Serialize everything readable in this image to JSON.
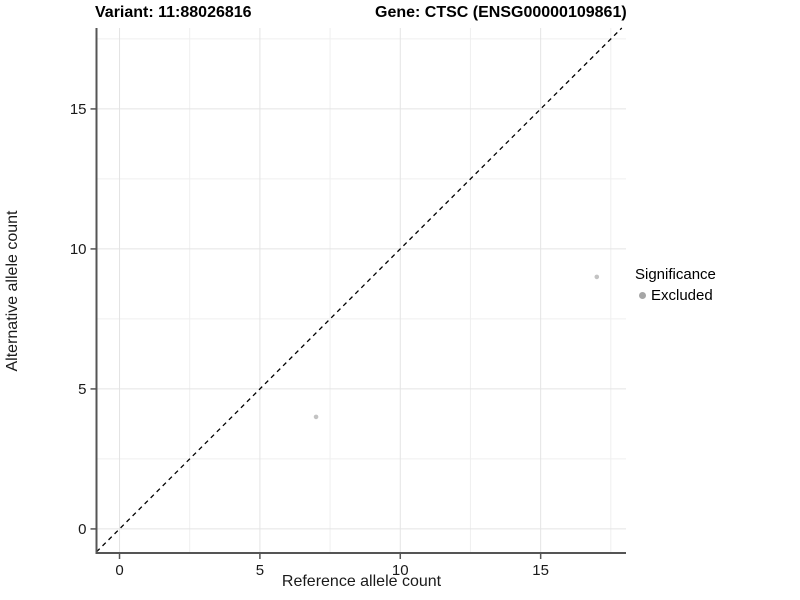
{
  "title": {
    "left": "Variant: 11:88026816",
    "right": "Gene: CTSC (ENSG00000109861)"
  },
  "axes": {
    "x_label": "Reference allele count",
    "y_label": "Alternative allele count"
  },
  "legend": {
    "title": "Significance",
    "items": [
      {
        "label": "Excluded",
        "color": "#a6a6a6"
      }
    ]
  },
  "colors": {
    "background": "#ffffff",
    "grid_major": "#e4e4e4",
    "grid_minor": "#efefef",
    "axis_line": "#555555",
    "tick_mark": "#555555",
    "tick_label": "#1a1a1a",
    "point": "#c3c3c3",
    "reference_line": "#000000"
  },
  "chart_data": {
    "type": "scatter",
    "title": "Variant: 11:88026816   Gene: CTSC (ENSG00000109861)",
    "xlabel": "Reference allele count",
    "ylabel": "Alternative allele count",
    "xlim": [
      -0.82,
      18.04
    ],
    "ylim": [
      -0.86,
      17.89
    ],
    "x_major_ticks": [
      0,
      5,
      10,
      15
    ],
    "y_major_ticks": [
      0,
      5,
      10,
      15
    ],
    "x_minor_ticks": [
      2.5,
      7.5,
      12.5,
      17.5
    ],
    "y_minor_ticks": [
      2.5,
      7.5,
      12.5,
      17.5
    ],
    "grid": true,
    "legend_position": "right",
    "series": [
      {
        "name": "Excluded",
        "points": [
          {
            "x": 7,
            "y": 4
          },
          {
            "x": 17,
            "y": 9
          }
        ]
      }
    ],
    "reference_line": {
      "type": "abline",
      "slope": 1,
      "intercept": 0,
      "style": "dashed"
    }
  }
}
